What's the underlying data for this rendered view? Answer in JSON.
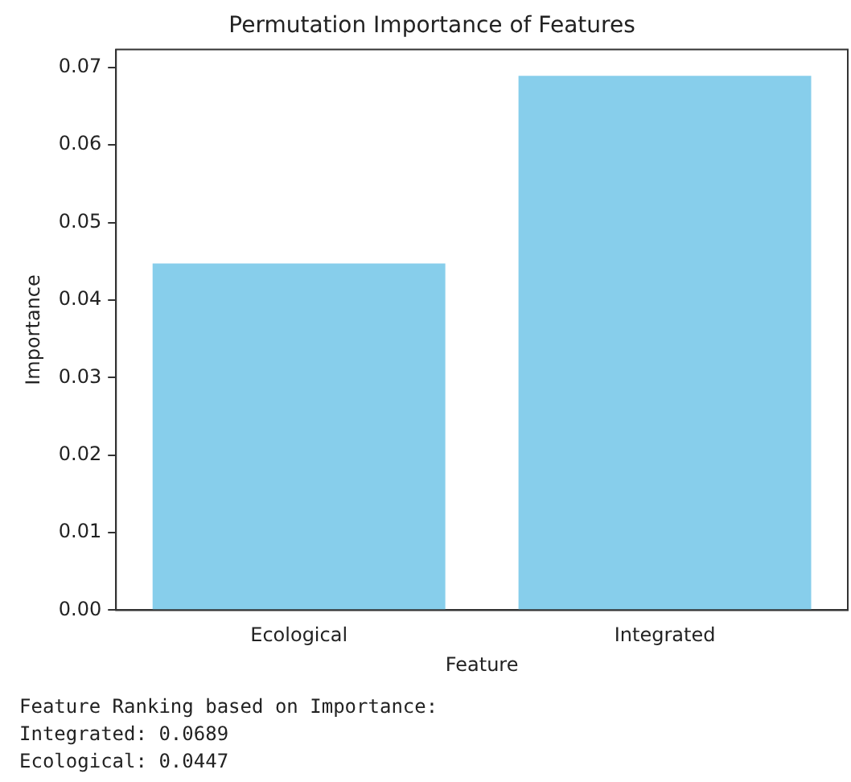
{
  "chart_data": {
    "type": "bar",
    "title": "Permutation Importance of Features",
    "xlabel": "Feature",
    "ylabel": "Importance",
    "categories": [
      "Ecological",
      "Integrated"
    ],
    "values": [
      0.0447,
      0.0689
    ],
    "color": "#87ceeb",
    "ylim": [
      0,
      0.0723
    ],
    "yticks": [
      {
        "value": 0,
        "label": "0.00"
      },
      0.01,
      0.02,
      0.03,
      0.04,
      0.05,
      0.06,
      0.07
    ],
    "grid": false,
    "legend": false,
    "annotations": [
      "Feature Ranking based on Importance:",
      "Integrated: 0.0689",
      "Ecological: 0.0447"
    ]
  }
}
